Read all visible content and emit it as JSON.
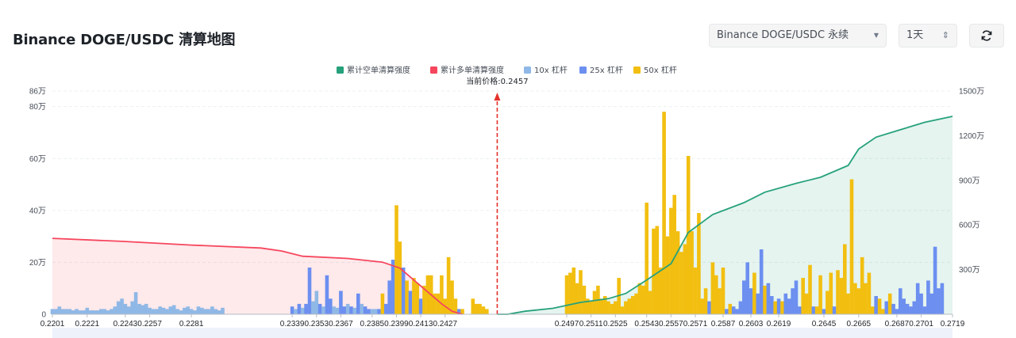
{
  "header": {
    "title": "Binance DOGE/USDC 清算地图",
    "pair_select": "Binance DOGE/USDC 永续",
    "interval_select": "1天"
  },
  "icons": {
    "caret": "chevron-down-icon",
    "updown": "up-down-arrows-icon",
    "refresh": "refresh-icon"
  },
  "colors": {
    "short_cum": "#26a17b",
    "long_cum": "#f6465d",
    "lev10": "#8fb8e6",
    "lev25": "#6c8ff0",
    "lev50": "#f2bf11",
    "current_price_line": "#e5312b"
  },
  "chart_data": {
    "type": "bar",
    "legend": [
      "累计空单清算强度",
      "累计多单清算强度",
      "10x 杠杆",
      "25x 杠杆",
      "50x 杠杆"
    ],
    "legend_position": "top-center",
    "current_price_label": "当前价格:0.2457",
    "current_price": 0.2457,
    "left_axis_ticks": [
      "0",
      "20万",
      "40万",
      "60万",
      "80万",
      "86万"
    ],
    "left_axis_range": [
      0,
      860000
    ],
    "right_axis_ticks": [
      "300万",
      "600万",
      "900万",
      "1200万",
      "1500万"
    ],
    "right_axis_range": [
      0,
      15000000
    ],
    "x_ticks": [
      "0.2201",
      "0.2221",
      "0.2243",
      "0.2257",
      "0.2281",
      "0.2339",
      "0.2353",
      "0.2367",
      "0.2385",
      "0.2399",
      "0.2413",
      "0.2427",
      "0.2497",
      "0.2511",
      "0.2525",
      "0.2543",
      "0.2557",
      "0.2571",
      "0.2587",
      "0.2603",
      "0.2619",
      "0.2645",
      "0.2665",
      "0.2687",
      "0.2701",
      "0.2719"
    ],
    "grid": true,
    "bars": [
      [
        0.2201,
        20000,
        "10x"
      ],
      [
        0.2203,
        20000,
        "10x"
      ],
      [
        0.2205,
        30000,
        "10x"
      ],
      [
        0.2207,
        20000,
        "10x"
      ],
      [
        0.2209,
        20000,
        "10x"
      ],
      [
        0.2211,
        20000,
        "10x"
      ],
      [
        0.2213,
        15000,
        "10x"
      ],
      [
        0.2215,
        20000,
        "10x"
      ],
      [
        0.2217,
        15000,
        "10x"
      ],
      [
        0.2219,
        15000,
        "10x"
      ],
      [
        0.2221,
        25000,
        "10x"
      ],
      [
        0.2223,
        15000,
        "10x"
      ],
      [
        0.2225,
        15000,
        "10x"
      ],
      [
        0.2227,
        15000,
        "10x"
      ],
      [
        0.2229,
        20000,
        "10x"
      ],
      [
        0.2231,
        20000,
        "10x"
      ],
      [
        0.2233,
        15000,
        "10x"
      ],
      [
        0.2235,
        20000,
        "10x"
      ],
      [
        0.2237,
        30000,
        "10x"
      ],
      [
        0.2239,
        50000,
        "10x"
      ],
      [
        0.2241,
        60000,
        "10x"
      ],
      [
        0.2243,
        40000,
        "10x"
      ],
      [
        0.2245,
        30000,
        "10x"
      ],
      [
        0.2247,
        50000,
        "10x"
      ],
      [
        0.2249,
        85000,
        "10x"
      ],
      [
        0.2251,
        40000,
        "10x"
      ],
      [
        0.2253,
        35000,
        "10x"
      ],
      [
        0.2255,
        40000,
        "10x"
      ],
      [
        0.2257,
        25000,
        "10x"
      ],
      [
        0.2259,
        20000,
        "10x"
      ],
      [
        0.2261,
        20000,
        "10x"
      ],
      [
        0.2263,
        30000,
        "10x"
      ],
      [
        0.2265,
        25000,
        "10x"
      ],
      [
        0.2267,
        20000,
        "10x"
      ],
      [
        0.2269,
        30000,
        "10x"
      ],
      [
        0.2271,
        35000,
        "10x"
      ],
      [
        0.2273,
        20000,
        "10x"
      ],
      [
        0.2275,
        15000,
        "10x"
      ],
      [
        0.2277,
        25000,
        "10x"
      ],
      [
        0.2279,
        30000,
        "10x"
      ],
      [
        0.2281,
        20000,
        "10x"
      ],
      [
        0.2283,
        15000,
        "10x"
      ],
      [
        0.2285,
        30000,
        "10x"
      ],
      [
        0.2287,
        25000,
        "10x"
      ],
      [
        0.2289,
        20000,
        "10x"
      ],
      [
        0.2291,
        20000,
        "10x"
      ],
      [
        0.2293,
        30000,
        "10x"
      ],
      [
        0.2295,
        20000,
        "10x"
      ],
      [
        0.2297,
        15000,
        "10x"
      ],
      [
        0.2299,
        25000,
        "10x"
      ],
      [
        0.2339,
        30000,
        "25x"
      ],
      [
        0.2341,
        20000,
        "10x"
      ],
      [
        0.2343,
        40000,
        "25x"
      ],
      [
        0.2345,
        25000,
        "10x"
      ],
      [
        0.2347,
        40000,
        "25x"
      ],
      [
        0.2349,
        180000,
        "25x"
      ],
      [
        0.2351,
        50000,
        "10x"
      ],
      [
        0.2353,
        90000,
        "10x"
      ],
      [
        0.2355,
        40000,
        "25x"
      ],
      [
        0.2357,
        30000,
        "10x"
      ],
      [
        0.2359,
        150000,
        "25x"
      ],
      [
        0.2361,
        60000,
        "25x"
      ],
      [
        0.2363,
        30000,
        "10x"
      ],
      [
        0.2365,
        25000,
        "10x"
      ],
      [
        0.2367,
        90000,
        "25x"
      ],
      [
        0.2369,
        30000,
        "25x"
      ],
      [
        0.2371,
        40000,
        "10x"
      ],
      [
        0.2373,
        30000,
        "25x"
      ],
      [
        0.2375,
        25000,
        "10x"
      ],
      [
        0.2377,
        80000,
        "25x"
      ],
      [
        0.2379,
        40000,
        "10x"
      ],
      [
        0.2381,
        30000,
        "25x"
      ],
      [
        0.2383,
        20000,
        "25x"
      ],
      [
        0.2385,
        20000,
        "10x"
      ],
      [
        0.2387,
        20000,
        "10x"
      ],
      [
        0.2389,
        20000,
        "25x"
      ],
      [
        0.2391,
        80000,
        "50x"
      ],
      [
        0.2393,
        40000,
        "25x"
      ],
      [
        0.2395,
        130000,
        "25x"
      ],
      [
        0.2397,
        210000,
        "25x"
      ],
      [
        0.2399,
        420000,
        "50x"
      ],
      [
        0.2401,
        280000,
        "50x"
      ],
      [
        0.2403,
        180000,
        "25x"
      ],
      [
        0.2405,
        130000,
        "50x"
      ],
      [
        0.2407,
        90000,
        "25x"
      ],
      [
        0.2409,
        140000,
        "50x"
      ],
      [
        0.2411,
        120000,
        "50x"
      ],
      [
        0.2413,
        60000,
        "25x"
      ],
      [
        0.2415,
        110000,
        "50x"
      ],
      [
        0.2417,
        150000,
        "50x"
      ],
      [
        0.2419,
        150000,
        "50x"
      ],
      [
        0.2421,
        80000,
        "50x"
      ],
      [
        0.2423,
        80000,
        "50x"
      ],
      [
        0.2425,
        150000,
        "50x"
      ],
      [
        0.2427,
        60000,
        "50x"
      ],
      [
        0.2429,
        220000,
        "50x"
      ],
      [
        0.2431,
        130000,
        "50x"
      ],
      [
        0.2433,
        60000,
        "50x"
      ],
      [
        0.2435,
        20000,
        "25x"
      ],
      [
        0.2437,
        20000,
        "50x"
      ],
      [
        0.2443,
        60000,
        "50x"
      ],
      [
        0.2445,
        40000,
        "50x"
      ],
      [
        0.2447,
        40000,
        "50x"
      ],
      [
        0.2449,
        30000,
        "50x"
      ],
      [
        0.2451,
        20000,
        "50x"
      ],
      [
        0.2497,
        150000,
        "50x"
      ],
      [
        0.2499,
        160000,
        "50x"
      ],
      [
        0.2501,
        180000,
        "50x"
      ],
      [
        0.2503,
        120000,
        "50x"
      ],
      [
        0.2505,
        170000,
        "50x"
      ],
      [
        0.2507,
        110000,
        "50x"
      ],
      [
        0.2509,
        60000,
        "50x"
      ],
      [
        0.2511,
        50000,
        "50x"
      ],
      [
        0.2513,
        90000,
        "50x"
      ],
      [
        0.2515,
        110000,
        "50x"
      ],
      [
        0.2517,
        60000,
        "50x"
      ],
      [
        0.2519,
        70000,
        "50x"
      ],
      [
        0.2521,
        50000,
        "50x"
      ],
      [
        0.2523,
        40000,
        "50x"
      ],
      [
        0.2525,
        50000,
        "50x"
      ],
      [
        0.2527,
        140000,
        "50x"
      ],
      [
        0.2529,
        30000,
        "50x"
      ],
      [
        0.2531,
        50000,
        "50x"
      ],
      [
        0.2533,
        60000,
        "50x"
      ],
      [
        0.2535,
        70000,
        "50x"
      ],
      [
        0.2537,
        80000,
        "50x"
      ],
      [
        0.2539,
        120000,
        "50x"
      ],
      [
        0.2541,
        110000,
        "50x"
      ],
      [
        0.2543,
        430000,
        "50x"
      ],
      [
        0.2545,
        90000,
        "50x"
      ],
      [
        0.2547,
        330000,
        "50x"
      ],
      [
        0.2549,
        340000,
        "50x"
      ],
      [
        0.2551,
        180000,
        "50x"
      ],
      [
        0.2553,
        780000,
        "50x"
      ],
      [
        0.2555,
        300000,
        "50x"
      ],
      [
        0.2557,
        410000,
        "50x"
      ],
      [
        0.2559,
        460000,
        "50x"
      ],
      [
        0.2561,
        320000,
        "50x"
      ],
      [
        0.2563,
        240000,
        "50x"
      ],
      [
        0.2565,
        270000,
        "50x"
      ],
      [
        0.2567,
        610000,
        "50x"
      ],
      [
        0.2569,
        320000,
        "50x"
      ],
      [
        0.2571,
        180000,
        "50x"
      ],
      [
        0.2573,
        390000,
        "50x"
      ],
      [
        0.2575,
        60000,
        "50x"
      ],
      [
        0.2577,
        100000,
        "50x"
      ],
      [
        0.2579,
        50000,
        "25x"
      ],
      [
        0.2581,
        200000,
        "50x"
      ],
      [
        0.2583,
        150000,
        "50x"
      ],
      [
        0.2585,
        100000,
        "50x"
      ],
      [
        0.2587,
        180000,
        "50x"
      ],
      [
        0.2589,
        20000,
        "25x"
      ],
      [
        0.2591,
        40000,
        "50x"
      ],
      [
        0.2593,
        30000,
        "25x"
      ],
      [
        0.2595,
        20000,
        "25x"
      ],
      [
        0.2597,
        50000,
        "25x"
      ],
      [
        0.2599,
        130000,
        "25x"
      ],
      [
        0.2601,
        200000,
        "25x"
      ],
      [
        0.2603,
        100000,
        "25x"
      ],
      [
        0.2605,
        160000,
        "50x"
      ],
      [
        0.2607,
        80000,
        "25x"
      ],
      [
        0.2609,
        250000,
        "25x"
      ],
      [
        0.2611,
        110000,
        "50x"
      ],
      [
        0.2613,
        120000,
        "25x"
      ],
      [
        0.2615,
        70000,
        "25x"
      ],
      [
        0.2617,
        50000,
        "50x"
      ],
      [
        0.2619,
        60000,
        "25x"
      ],
      [
        0.2621,
        50000,
        "50x"
      ],
      [
        0.2623,
        80000,
        "25x"
      ],
      [
        0.2625,
        60000,
        "25x"
      ],
      [
        0.2627,
        100000,
        "25x"
      ],
      [
        0.2629,
        130000,
        "25x"
      ],
      [
        0.2631,
        30000,
        "25x"
      ],
      [
        0.2633,
        140000,
        "50x"
      ],
      [
        0.2635,
        80000,
        "50x"
      ],
      [
        0.2637,
        190000,
        "50x"
      ],
      [
        0.2639,
        30000,
        "25x"
      ],
      [
        0.2641,
        30000,
        "50x"
      ],
      [
        0.2643,
        150000,
        "50x"
      ],
      [
        0.2645,
        20000,
        "25x"
      ],
      [
        0.2647,
        90000,
        "50x"
      ],
      [
        0.2649,
        160000,
        "50x"
      ],
      [
        0.2651,
        30000,
        "25x"
      ],
      [
        0.2653,
        170000,
        "50x"
      ],
      [
        0.2655,
        140000,
        "50x"
      ],
      [
        0.2657,
        270000,
        "50x"
      ],
      [
        0.2659,
        80000,
        "50x"
      ],
      [
        0.2661,
        520000,
        "50x"
      ],
      [
        0.2663,
        120000,
        "50x"
      ],
      [
        0.2665,
        100000,
        "50x"
      ],
      [
        0.2667,
        220000,
        "50x"
      ],
      [
        0.2669,
        120000,
        "50x"
      ],
      [
        0.2671,
        160000,
        "50x"
      ],
      [
        0.2673,
        30000,
        "50x"
      ],
      [
        0.2675,
        70000,
        "25x"
      ],
      [
        0.2677,
        60000,
        "50x"
      ],
      [
        0.2679,
        20000,
        "50x"
      ],
      [
        0.2681,
        50000,
        "25x"
      ],
      [
        0.2683,
        80000,
        "50x"
      ],
      [
        0.2685,
        40000,
        "25x"
      ],
      [
        0.2687,
        20000,
        "25x"
      ],
      [
        0.2689,
        100000,
        "25x"
      ],
      [
        0.2691,
        60000,
        "25x"
      ],
      [
        0.2693,
        40000,
        "25x"
      ],
      [
        0.2695,
        30000,
        "25x"
      ],
      [
        0.2697,
        50000,
        "25x"
      ],
      [
        0.2699,
        120000,
        "25x"
      ],
      [
        0.2701,
        80000,
        "25x"
      ],
      [
        0.2703,
        30000,
        "25x"
      ],
      [
        0.2705,
        130000,
        "25x"
      ],
      [
        0.2707,
        80000,
        "25x"
      ],
      [
        0.2709,
        260000,
        "25x"
      ],
      [
        0.2711,
        100000,
        "25x"
      ],
      [
        0.2713,
        120000,
        "25x"
      ]
    ],
    "long_cumulative": [
      [
        0.2201,
        5100000
      ],
      [
        0.2241,
        4900000
      ],
      [
        0.2281,
        4650000
      ],
      [
        0.2321,
        4450000
      ],
      [
        0.2333,
        4250000
      ],
      [
        0.2345,
        3900000
      ],
      [
        0.2371,
        3750000
      ],
      [
        0.2391,
        3500000
      ],
      [
        0.2401,
        3100000
      ],
      [
        0.2409,
        2300000
      ],
      [
        0.2417,
        1500000
      ],
      [
        0.2425,
        700000
      ],
      [
        0.2431,
        200000
      ],
      [
        0.2437,
        0
      ]
    ],
    "short_cumulative": [
      [
        0.2457,
        0
      ],
      [
        0.2463,
        0
      ],
      [
        0.2473,
        200000
      ],
      [
        0.2489,
        400000
      ],
      [
        0.2505,
        800000
      ],
      [
        0.2521,
        1050000
      ],
      [
        0.2531,
        1400000
      ],
      [
        0.2543,
        2300000
      ],
      [
        0.2557,
        3400000
      ],
      [
        0.2567,
        5500000
      ],
      [
        0.2581,
        6700000
      ],
      [
        0.2599,
        7500000
      ],
      [
        0.2611,
        8200000
      ],
      [
        0.2629,
        8800000
      ],
      [
        0.2643,
        9200000
      ],
      [
        0.2659,
        10000000
      ],
      [
        0.2665,
        11100000
      ],
      [
        0.2675,
        11900000
      ],
      [
        0.2689,
        12400000
      ],
      [
        0.2703,
        12900000
      ],
      [
        0.2719,
        13300000
      ]
    ]
  }
}
